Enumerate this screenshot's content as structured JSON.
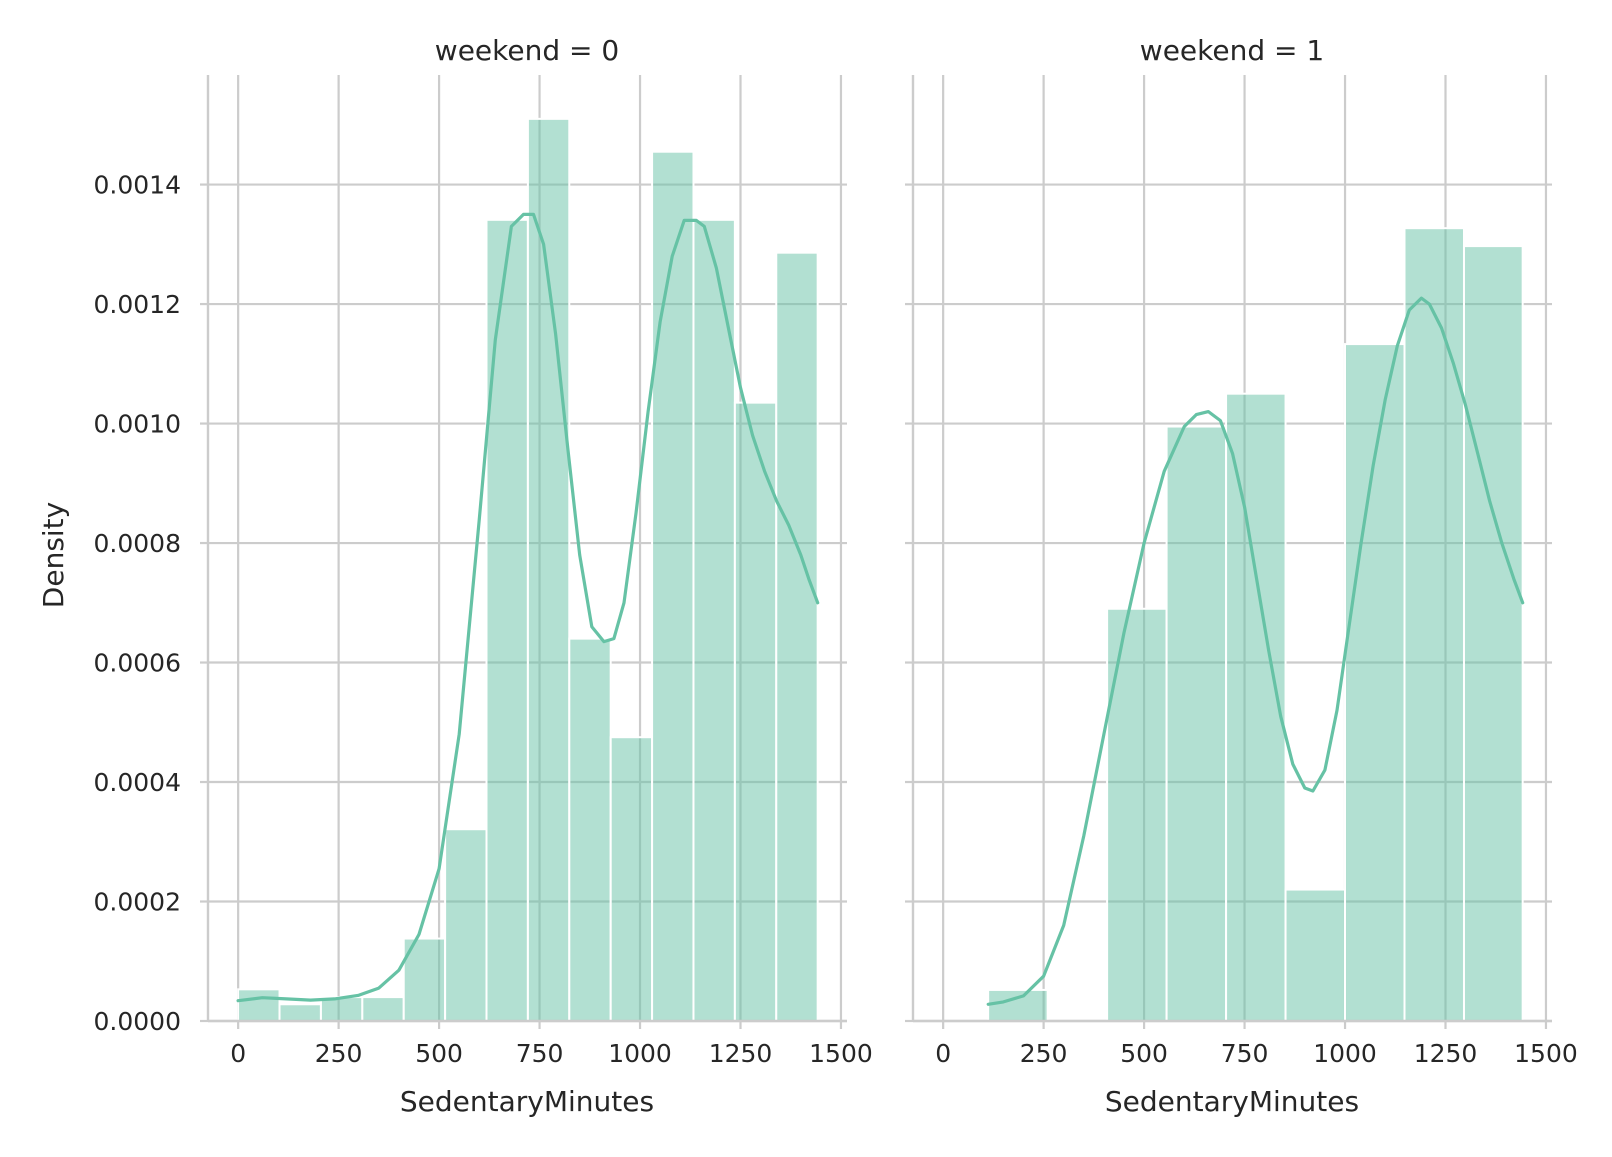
{
  "figure": {
    "ylabel": "Density",
    "bar_color": "#66c2a5",
    "bar_opacity": 0.5,
    "line_color": "#66c2a5",
    "grid_color": "#cccccc",
    "text_color": "#262626"
  },
  "chart_data": [
    {
      "type": "bar",
      "subtype": "histogram-with-kde",
      "title": "weekend = 0",
      "xlabel": "SedentaryMinutes",
      "ylabel": "Density",
      "xlim": [
        -75,
        1515
      ],
      "ylim": [
        0,
        0.0015834
      ],
      "grid": true,
      "x_ticks": [
        0,
        250,
        500,
        750,
        1000,
        1250,
        1500
      ],
      "y_ticks": [
        0.0,
        0.0002,
        0.0004,
        0.0006,
        0.0008,
        0.001,
        0.0012,
        0.0014
      ],
      "y_tick_labels": [
        "0.0000",
        "0.0002",
        "0.0004",
        "0.0006",
        "0.0008",
        "0.0010",
        "0.0012",
        "0.0014"
      ],
      "bins": [
        {
          "x0": 0,
          "x1": 103,
          "density": 5.3e-05
        },
        {
          "x0": 103,
          "x1": 206,
          "density": 2.8e-05
        },
        {
          "x0": 206,
          "x1": 309,
          "density": 4e-05
        },
        {
          "x0": 309,
          "x1": 412,
          "density": 4e-05
        },
        {
          "x0": 412,
          "x1": 515,
          "density": 0.000138
        },
        {
          "x0": 515,
          "x1": 618,
          "density": 0.000321
        },
        {
          "x0": 618,
          "x1": 721,
          "density": 0.001341
        },
        {
          "x0": 721,
          "x1": 824,
          "density": 0.00151
        },
        {
          "x0": 824,
          "x1": 927,
          "density": 0.00064
        },
        {
          "x0": 927,
          "x1": 1030,
          "density": 0.000475
        },
        {
          "x0": 1030,
          "x1": 1133,
          "density": 0.001455
        },
        {
          "x0": 1133,
          "x1": 1236,
          "density": 0.001341
        },
        {
          "x0": 1236,
          "x1": 1339,
          "density": 0.001035
        },
        {
          "x0": 1339,
          "x1": 1442,
          "density": 0.001286
        }
      ],
      "kde": {
        "x": [
          0,
          60,
          120,
          180,
          240,
          300,
          350,
          400,
          450,
          500,
          550,
          600,
          640,
          680,
          710,
          735,
          760,
          790,
          820,
          850,
          880,
          910,
          935,
          960,
          990,
          1020,
          1050,
          1080,
          1110,
          1140,
          1160,
          1190,
          1220,
          1250,
          1280,
          1310,
          1340,
          1370,
          1400,
          1420,
          1442
        ],
        "y": [
          3.4e-05,
          3.9e-05,
          3.7e-05,
          3.5e-05,
          3.7e-05,
          4.3e-05,
          5.5e-05,
          8.5e-05,
          0.000145,
          0.000255,
          0.00048,
          0.00084,
          0.00114,
          0.00133,
          0.00135,
          0.00135,
          0.0013,
          0.00115,
          0.00096,
          0.00078,
          0.00066,
          0.000635,
          0.00064,
          0.0007,
          0.00085,
          0.00102,
          0.00117,
          0.00128,
          0.00134,
          0.00134,
          0.00133,
          0.00126,
          0.00116,
          0.00106,
          0.00098,
          0.00092,
          0.00087,
          0.00083,
          0.00078,
          0.00074,
          0.0007
        ]
      }
    },
    {
      "type": "bar",
      "subtype": "histogram-with-kde",
      "title": "weekend = 1",
      "xlabel": "SedentaryMinutes",
      "ylabel": "",
      "xlim": [
        -75,
        1515
      ],
      "ylim": [
        0,
        0.0015834
      ],
      "grid": true,
      "x_ticks": [
        0,
        250,
        500,
        750,
        1000,
        1250,
        1500
      ],
      "y_ticks": [
        0.0,
        0.0002,
        0.0004,
        0.0006,
        0.0008,
        0.001,
        0.0012,
        0.0014
      ],
      "y_tick_labels": [],
      "bins": [
        {
          "x0": 112,
          "x1": 260,
          "density": 5.2e-05
        },
        {
          "x0": 260,
          "x1": 408,
          "density": 0.0
        },
        {
          "x0": 408,
          "x1": 556,
          "density": 0.00069
        },
        {
          "x0": 556,
          "x1": 704,
          "density": 0.000995
        },
        {
          "x0": 704,
          "x1": 852,
          "density": 0.00105
        },
        {
          "x0": 852,
          "x1": 1000,
          "density": 0.00022
        },
        {
          "x0": 1000,
          "x1": 1148,
          "density": 0.001133
        },
        {
          "x0": 1148,
          "x1": 1296,
          "density": 0.001327
        },
        {
          "x0": 1296,
          "x1": 1442,
          "density": 0.001297
        }
      ],
      "kde": {
        "x": [
          112,
          150,
          200,
          250,
          300,
          350,
          400,
          450,
          500,
          550,
          600,
          630,
          660,
          690,
          720,
          750,
          780,
          810,
          840,
          870,
          900,
          920,
          950,
          980,
          1010,
          1040,
          1070,
          1100,
          1130,
          1160,
          1190,
          1210,
          1240,
          1270,
          1300,
          1330,
          1360,
          1390,
          1420,
          1442
        ],
        "y": [
          2.8e-05,
          3.2e-05,
          4.2e-05,
          7.5e-05,
          0.00016,
          0.00031,
          0.00048,
          0.00065,
          0.0008,
          0.00092,
          0.000995,
          0.001015,
          0.00102,
          0.001005,
          0.00095,
          0.00086,
          0.00074,
          0.00062,
          0.00051,
          0.00043,
          0.00039,
          0.000385,
          0.00042,
          0.00052,
          0.00066,
          0.0008,
          0.00093,
          0.00104,
          0.00113,
          0.00119,
          0.00121,
          0.0012,
          0.00116,
          0.0011,
          0.00103,
          0.00095,
          0.00087,
          0.0008,
          0.00074,
          0.0007
        ]
      }
    }
  ]
}
